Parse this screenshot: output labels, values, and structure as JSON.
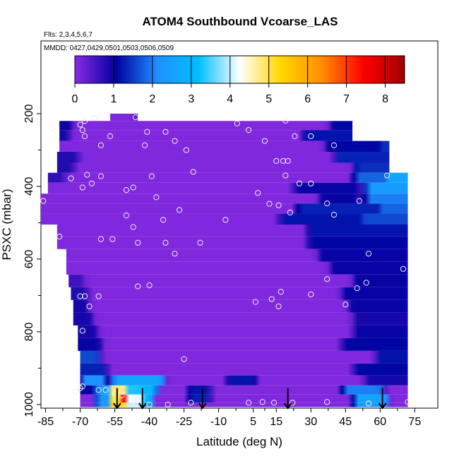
{
  "chart_data": {
    "type": "heatmap",
    "title": "ATOM4 Southbound Vcoarse_LAS",
    "flights_note": "Flts: 2,3,4,5,6,7",
    "dates_note": "MMDD: 0427,0429,0501,0503,0506,0509",
    "xlabel": "Latitude (deg N)",
    "ylabel": "PSXC (mbar)",
    "xlim": [
      -87,
      85
    ],
    "ylim": [
      1010,
      0
    ],
    "x_ticks": [
      -85,
      -70,
      -55,
      -40,
      -25,
      -10,
      5,
      15,
      30,
      45,
      60,
      75
    ],
    "y_ticks": [
      200,
      400,
      600,
      800,
      1000
    ],
    "grid": false,
    "colorbar": {
      "range": [
        0,
        8.5
      ],
      "ticks": [
        0,
        1,
        2,
        3,
        4,
        5,
        6,
        7,
        8
      ],
      "colors": [
        "#8a2be2",
        "#0000a0",
        "#1e90ff",
        "#00bfff",
        "#ffffff",
        "#ffd700",
        "#ff8c00",
        "#ff0000",
        "#a00000"
      ]
    },
    "rows": [
      {
        "p": 210,
        "lat_min": -57,
        "lat_max": -45,
        "hot": [
          [
            -46,
            -45,
            0.3
          ]
        ]
      },
      {
        "p": 230,
        "lat_min": -79,
        "lat_max": 48,
        "hot": [
          [
            -79,
            -75,
            1.0
          ],
          [
            40,
            48,
            1.1
          ]
        ]
      },
      {
        "p": 260,
        "lat_min": -79,
        "lat_max": 48,
        "hot": [
          [
            -79,
            -76,
            0.9
          ],
          [
            28,
            48,
            1.2
          ]
        ]
      },
      {
        "p": 290,
        "lat_min": -79,
        "lat_max": 64,
        "hot": [
          [
            38,
            60,
            1.1
          ],
          [
            60,
            64,
            1.4
          ]
        ]
      },
      {
        "p": 320,
        "lat_min": -80,
        "lat_max": 64,
        "hot": [
          [
            -80,
            -72,
            0.8
          ],
          [
            42,
            64,
            1.3
          ]
        ]
      },
      {
        "p": 350,
        "lat_min": -80,
        "lat_max": 64,
        "hot": [
          [
            -80,
            -74,
            0.8
          ],
          [
            50,
            64,
            1.4
          ]
        ]
      },
      {
        "p": 375,
        "lat_min": -84,
        "lat_max": 72,
        "hot": [
          [
            -84,
            -78,
            0.7
          ],
          [
            50,
            64,
            1.8
          ],
          [
            64,
            72,
            2.6
          ]
        ]
      },
      {
        "p": 405,
        "lat_min": -84,
        "lat_max": 72,
        "hot": [
          [
            24,
            50,
            1.0
          ],
          [
            55,
            72,
            2.4
          ]
        ]
      },
      {
        "p": 435,
        "lat_min": -87,
        "lat_max": 72,
        "hot": [
          [
            35,
            50,
            1.0
          ],
          [
            55,
            72,
            2.0
          ]
        ]
      },
      {
        "p": 460,
        "lat_min": -87,
        "lat_max": 72,
        "hot": [
          [
            25,
            60,
            1.3
          ],
          [
            60,
            72,
            1.8
          ]
        ]
      },
      {
        "p": 490,
        "lat_min": -87,
        "lat_max": 72,
        "hot": [
          [
            18,
            52,
            1.2
          ],
          [
            52,
            72,
            1.6
          ]
        ]
      },
      {
        "p": 520,
        "lat_min": -80,
        "lat_max": 72,
        "hot": [
          [
            30,
            72,
            1.2
          ]
        ]
      },
      {
        "p": 555,
        "lat_min": -80,
        "lat_max": 72,
        "hot": [
          [
            30,
            72,
            1.1
          ]
        ]
      },
      {
        "p": 590,
        "lat_min": -76,
        "lat_max": 72,
        "hot": [
          [
            35,
            72,
            1.0
          ]
        ]
      },
      {
        "p": 625,
        "lat_min": -76,
        "lat_max": 72,
        "hot": [
          [
            40,
            72,
            1.0
          ]
        ]
      },
      {
        "p": 660,
        "lat_min": -75,
        "lat_max": 72,
        "hot": [
          [
            -75,
            -70,
            0.6
          ],
          [
            50,
            72,
            1.0
          ]
        ]
      },
      {
        "p": 695,
        "lat_min": -74,
        "lat_max": 72,
        "hot": [
          [
            -74,
            -68,
            0.8
          ],
          [
            45,
            72,
            1.0
          ]
        ]
      },
      {
        "p": 730,
        "lat_min": -73,
        "lat_max": 72,
        "hot": [
          [
            -73,
            -68,
            0.9
          ],
          [
            48,
            72,
            1.0
          ]
        ]
      },
      {
        "p": 765,
        "lat_min": -73,
        "lat_max": 72,
        "hot": [
          [
            -73,
            -66,
            0.9
          ],
          [
            50,
            72,
            0.9
          ]
        ]
      },
      {
        "p": 800,
        "lat_min": -71,
        "lat_max": 72,
        "hot": [
          [
            -71,
            -64,
            0.9
          ],
          [
            50,
            72,
            1.0
          ]
        ]
      },
      {
        "p": 835,
        "lat_min": -71,
        "lat_max": 72,
        "hot": [
          [
            -71,
            -62,
            1.0
          ],
          [
            45,
            72,
            1.1
          ]
        ]
      },
      {
        "p": 870,
        "lat_min": -70,
        "lat_max": 72,
        "hot": [
          [
            -70,
            -63,
            1.6
          ],
          [
            60,
            72,
            1.2
          ]
        ]
      },
      {
        "p": 905,
        "lat_min": -70,
        "lat_max": 72,
        "hot": [
          [
            -70,
            -60,
            1.3
          ],
          [
            50,
            72,
            1.1
          ]
        ]
      },
      {
        "p": 935,
        "lat_min": -70,
        "lat_max": 72,
        "hot": [
          [
            -68,
            -60,
            2.2
          ],
          [
            -55,
            -35,
            2.6
          ],
          [
            -5,
            5,
            1.2
          ],
          [
            55,
            72,
            0.9
          ]
        ]
      },
      {
        "p": 960,
        "lat_min": -70,
        "lat_max": 72,
        "hot": [
          [
            -70,
            -64,
            1.0
          ],
          [
            -62,
            -56,
            2.4
          ],
          [
            -56,
            -50,
            4.8
          ],
          [
            -50,
            -44,
            3.3
          ],
          [
            -44,
            -38,
            3.0
          ],
          [
            -22,
            -15,
            1.2
          ],
          [
            45,
            60,
            2.0
          ]
        ]
      },
      {
        "p": 985,
        "lat_min": -70,
        "lat_max": 72,
        "hot": [
          [
            -62,
            -56,
            2.3
          ],
          [
            -56,
            -50,
            5.0
          ],
          [
            -52,
            -51,
            7.5
          ],
          [
            -50,
            -44,
            4.2
          ],
          [
            -44,
            -40,
            3.2
          ],
          [
            -22,
            -15,
            1.3
          ],
          [
            50,
            62,
            2.6
          ]
        ]
      },
      {
        "p": 1005,
        "lat_min": -70,
        "lat_max": 72,
        "hot": [
          [
            -62,
            -56,
            2.3
          ],
          [
            -56,
            -50,
            5.2
          ],
          [
            -50,
            -44,
            4.0
          ],
          [
            -44,
            -40,
            3.0
          ],
          [
            50,
            62,
            2.4
          ]
        ]
      }
    ],
    "samples": [
      {
        "lat": -82,
        "p": 240
      },
      {
        "lat": -70,
        "p": 230
      },
      {
        "lat": -69,
        "p": 245
      },
      {
        "lat": -68,
        "p": 220
      },
      {
        "lat": -68,
        "p": 262
      },
      {
        "lat": -64,
        "p": 212
      },
      {
        "lat": -61,
        "p": 287
      },
      {
        "lat": -57,
        "p": 262
      },
      {
        "lat": -46,
        "p": 210
      },
      {
        "lat": -41,
        "p": 250
      },
      {
        "lat": -42,
        "p": 287
      },
      {
        "lat": -33,
        "p": 250
      },
      {
        "lat": -29,
        "p": 275
      },
      {
        "lat": -24,
        "p": 300
      },
      {
        "lat": -2,
        "p": 227
      },
      {
        "lat": 3,
        "p": 245
      },
      {
        "lat": 10,
        "p": 275
      },
      {
        "lat": 19,
        "p": 219
      },
      {
        "lat": 23,
        "p": 262
      },
      {
        "lat": 30,
        "p": 262
      },
      {
        "lat": 40,
        "p": 287
      },
      {
        "lat": -74,
        "p": 378
      },
      {
        "lat": -69,
        "p": 403
      },
      {
        "lat": -67,
        "p": 368
      },
      {
        "lat": -65,
        "p": 392
      },
      {
        "lat": -61,
        "p": 372
      },
      {
        "lat": -50,
        "p": 410
      },
      {
        "lat": -47,
        "p": 403
      },
      {
        "lat": -39,
        "p": 372
      },
      {
        "lat": -37,
        "p": 430
      },
      {
        "lat": -21,
        "p": 360
      },
      {
        "lat": 7,
        "p": 418
      },
      {
        "lat": 15,
        "p": 330
      },
      {
        "lat": 18,
        "p": 330
      },
      {
        "lat": 20,
        "p": 330
      },
      {
        "lat": 19,
        "p": 370
      },
      {
        "lat": 12,
        "p": 448
      },
      {
        "lat": 16,
        "p": 452
      },
      {
        "lat": 21,
        "p": 472
      },
      {
        "lat": 25,
        "p": 392
      },
      {
        "lat": 30,
        "p": 392
      },
      {
        "lat": 37,
        "p": 447
      },
      {
        "lat": 40,
        "p": 478
      },
      {
        "lat": 51,
        "p": 440
      },
      {
        "lat": 63,
        "p": 370
      },
      {
        "lat": -86,
        "p": 440
      },
      {
        "lat": -79,
        "p": 538
      },
      {
        "lat": -61,
        "p": 545
      },
      {
        "lat": -56,
        "p": 545
      },
      {
        "lat": -50,
        "p": 480
      },
      {
        "lat": -47,
        "p": 512
      },
      {
        "lat": -45,
        "p": 555
      },
      {
        "lat": -34,
        "p": 492
      },
      {
        "lat": -27,
        "p": 465
      },
      {
        "lat": -33,
        "p": 555
      },
      {
        "lat": -29,
        "p": 585
      },
      {
        "lat": -18,
        "p": 555
      },
      {
        "lat": -7,
        "p": 492
      },
      {
        "lat": 55,
        "p": 585
      },
      {
        "lat": -70,
        "p": 702
      },
      {
        "lat": -68,
        "p": 702
      },
      {
        "lat": -66,
        "p": 730
      },
      {
        "lat": -62,
        "p": 702
      },
      {
        "lat": -45,
        "p": 675
      },
      {
        "lat": -40,
        "p": 672
      },
      {
        "lat": 6,
        "p": 718
      },
      {
        "lat": 13,
        "p": 710
      },
      {
        "lat": 16,
        "p": 730
      },
      {
        "lat": 17,
        "p": 690
      },
      {
        "lat": 30,
        "p": 697
      },
      {
        "lat": 37,
        "p": 655
      },
      {
        "lat": 45,
        "p": 725
      },
      {
        "lat": 50,
        "p": 680
      },
      {
        "lat": 54,
        "p": 665
      },
      {
        "lat": 70,
        "p": 627
      },
      {
        "lat": -69,
        "p": 797
      },
      {
        "lat": -25,
        "p": 875
      },
      {
        "lat": -70,
        "p": 955
      },
      {
        "lat": -69,
        "p": 950
      },
      {
        "lat": -72,
        "p": 965
      },
      {
        "lat": -62,
        "p": 960
      },
      {
        "lat": -59,
        "p": 960
      },
      {
        "lat": -55,
        "p": 970
      },
      {
        "lat": -52,
        "p": 975
      },
      {
        "lat": -45,
        "p": 988
      },
      {
        "lat": -46,
        "p": 1000
      },
      {
        "lat": -40,
        "p": 1000
      },
      {
        "lat": -32,
        "p": 1000
      },
      {
        "lat": -22,
        "p": 995
      },
      {
        "lat": 3,
        "p": 995
      },
      {
        "lat": 9,
        "p": 993
      },
      {
        "lat": 14,
        "p": 995
      },
      {
        "lat": 22,
        "p": 995
      },
      {
        "lat": 37,
        "p": 993
      },
      {
        "lat": 55,
        "p": 997
      },
      {
        "lat": 72,
        "p": 993
      }
    ],
    "arrows": [
      {
        "lat": -54,
        "p_top": 955,
        "p_bottom": 1010
      },
      {
        "lat": -43,
        "p_top": 955,
        "p_bottom": 1010
      },
      {
        "lat": -17,
        "p_top": 955,
        "p_bottom": 1010
      },
      {
        "lat": 20,
        "p_top": 955,
        "p_bottom": 1010
      },
      {
        "lat": 61,
        "p_top": 955,
        "p_bottom": 1010
      }
    ]
  }
}
